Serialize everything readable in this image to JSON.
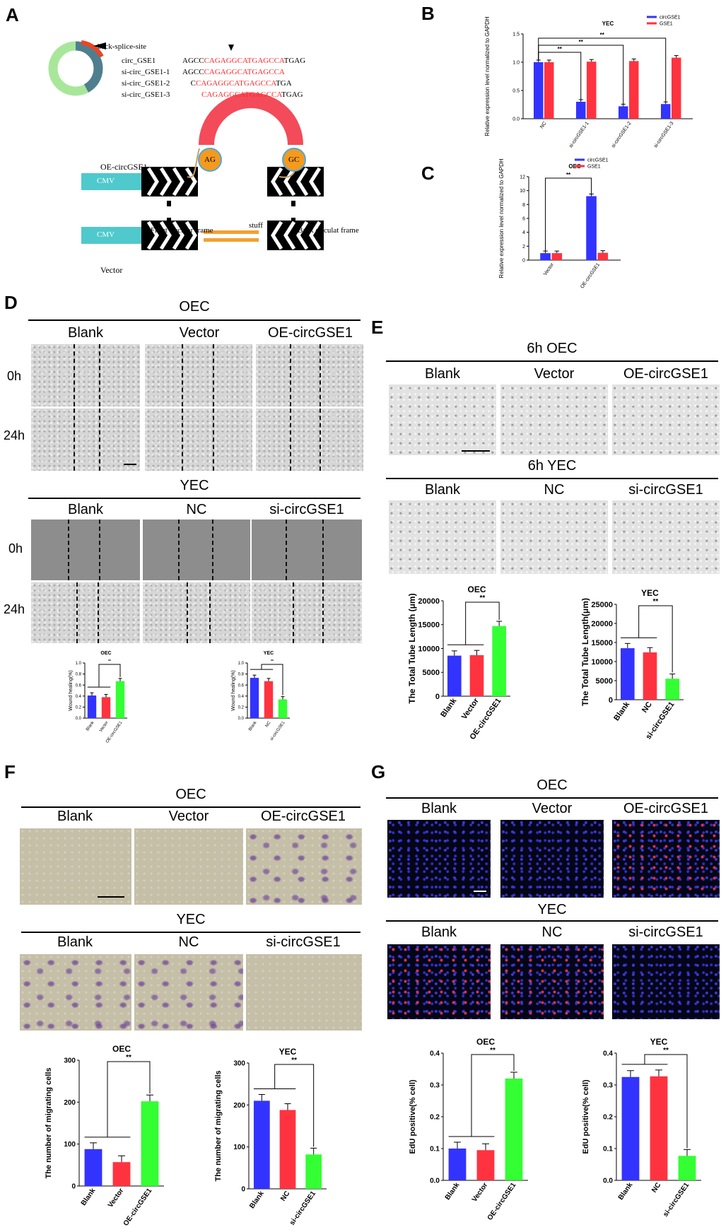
{
  "colors": {
    "blue": "#3333ff",
    "red": "#ff3340",
    "green": "#33ff33",
    "cmv": "#4fc9cc",
    "arc": "#f34b5a",
    "node": "#f39a1f",
    "stuff": "#f2a130",
    "seq_red": "#ff2a2a"
  },
  "panels": {
    "A": "A",
    "B": "B",
    "C": "C",
    "D": "D",
    "E": "E",
    "F": "F",
    "G": "G"
  },
  "panelA": {
    "back_splice": "back-splice-site",
    "seq_rows": [
      {
        "name": "circ_GSE1",
        "pre": "AGCC",
        "red": "CAGAGGCATGAGCCA",
        "post": "TGAG"
      },
      {
        "name": "si-circ_GSE1-1",
        "pre": "AGCC",
        "red": "CAGAGGCATGAGCCA",
        "post": ""
      },
      {
        "name": "si-circ_GSE1-2",
        "pre": "C",
        "red": "CAGAGGCATGAGCCA",
        "post": "TGA"
      },
      {
        "name": "si-circ_GSE1-3",
        "pre": "",
        "red": "CAGAGGCATGAGCCA",
        "post": "TGAG"
      }
    ],
    "oe_label": "OE-circGSE1",
    "vector_label": "Vector",
    "cmv": "CMV",
    "ag": "AG",
    "gc": "GC",
    "front": "Front circular frame",
    "back": "Back circulat frame",
    "stuff": "stuff"
  },
  "panelD": {
    "oec": "OEC",
    "yec": "YEC",
    "oec_cols": [
      "Blank",
      "Vector",
      "OE-circGSE1"
    ],
    "yec_cols": [
      "Blank",
      "NC",
      "si-circGSE1"
    ],
    "rows": [
      "0h",
      "24h"
    ]
  },
  "panelE": {
    "oec": "6h  OEC",
    "yec": "6h  YEC",
    "oec_cols": [
      "Blank",
      "Vector",
      "OE-circGSE1"
    ],
    "yec_cols": [
      "Blank",
      "NC",
      "si-circGSE1"
    ]
  },
  "panelF": {
    "oec": "OEC",
    "yec": "YEC",
    "oec_cols": [
      "Blank",
      "Vector",
      "OE-circGSE1"
    ],
    "yec_cols": [
      "Blank",
      "NC",
      "si-circGSE1"
    ]
  },
  "panelG": {
    "oec": "OEC",
    "yec": "YEC",
    "oec_cols": [
      "Blank",
      "Vector",
      "OE-circGSE1"
    ],
    "yec_cols": [
      "Blank",
      "NC",
      "si-circGSE1"
    ]
  },
  "chart_data": [
    {
      "id": "B",
      "type": "bar",
      "title": "YEC",
      "ylabel": "Relative expression level normalized to GAPDH",
      "categories": [
        "NC",
        "si-circGSE1-1",
        "si-circGSE1-2",
        "si-circGSE1-3"
      ],
      "series": [
        {
          "name": "circGSE1",
          "values": [
            1.0,
            0.3,
            0.22,
            0.26
          ]
        },
        {
          "name": "GSE1",
          "values": [
            1.0,
            1.01,
            1.02,
            1.08
          ]
        }
      ],
      "ylim": [
        0,
        1.5
      ],
      "yticks": [
        "0.0",
        "0.5",
        "1.0",
        "1.5"
      ],
      "sig": "**"
    },
    {
      "id": "C",
      "type": "bar",
      "title": "OEC",
      "ylabel": "Relative expression level normalized to GAPDH",
      "categories": [
        "Vector",
        "OE-circGSE1"
      ],
      "series": [
        {
          "name": "circGSE1",
          "values": [
            1.0,
            9.2
          ]
        },
        {
          "name": "GSE1",
          "values": [
            1.0,
            1.05
          ]
        }
      ],
      "ylim": [
        0,
        12
      ],
      "yticks": [
        "0",
        "2",
        "4",
        "6",
        "8",
        "10",
        "12"
      ],
      "sig": "**"
    },
    {
      "id": "D1",
      "type": "bar",
      "title": "OEC",
      "ylabel": "Wound healing(%)",
      "categories": [
        "Blank",
        "Vector",
        "OE-circGSE1"
      ],
      "values": [
        0.41,
        0.38,
        0.67
      ],
      "ylim": [
        0,
        1.0
      ],
      "yticks": [
        "0.0",
        "0.2",
        "0.4",
        "0.6",
        "0.8",
        "1.0"
      ],
      "sig": "**"
    },
    {
      "id": "D2",
      "type": "bar",
      "title": "YEC",
      "ylabel": "Wound healing(%)",
      "categories": [
        "Blank",
        "NC",
        "si-circGSE1"
      ],
      "values": [
        0.73,
        0.67,
        0.34
      ],
      "ylim": [
        0,
        1.0
      ],
      "yticks": [
        "0.0",
        "0.2",
        "0.4",
        "0.6",
        "0.8",
        "1.0"
      ],
      "sig": "**"
    },
    {
      "id": "E1",
      "type": "bar",
      "title": "OEC",
      "ylabel": "The Total Tube Length (μm)",
      "categories": [
        "Blank",
        "Vector",
        "OE-circGSE1"
      ],
      "values": [
        8500,
        8600,
        14700
      ],
      "ylim": [
        0,
        20000
      ],
      "yticks": [
        "0",
        "5000",
        "10000",
        "15000",
        "20000"
      ],
      "sig": "**"
    },
    {
      "id": "E2",
      "type": "bar",
      "title": "YEC",
      "ylabel": "The Total Tube Length(μm)",
      "categories": [
        "Blank",
        "NC",
        "si-circGSE1"
      ],
      "values": [
        13500,
        12400,
        5500
      ],
      "ylim": [
        0,
        25000
      ],
      "yticks": [
        "0",
        "5000",
        "10000",
        "15000",
        "20000",
        "25000"
      ],
      "sig": "**"
    },
    {
      "id": "F1",
      "type": "bar",
      "title": "OEC",
      "ylabel": "The number of migrating cells",
      "categories": [
        "Blank",
        "Vector",
        "OE-circGSE1"
      ],
      "values": [
        88,
        57,
        202
      ],
      "ylim": [
        0,
        300
      ],
      "yticks": [
        "0",
        "100",
        "200",
        "300"
      ],
      "sig": "**"
    },
    {
      "id": "F2",
      "type": "bar",
      "title": "YEC",
      "ylabel": "The number of migrating cells",
      "categories": [
        "Blank",
        "NC",
        "si-circGSE1"
      ],
      "values": [
        210,
        188,
        82
      ],
      "ylim": [
        0,
        300
      ],
      "yticks": [
        "0",
        "100",
        "200",
        "300"
      ],
      "sig": "**"
    },
    {
      "id": "G1",
      "type": "bar",
      "title": "OEC",
      "ylabel": "EdU positive(% cell)",
      "categories": [
        "Blank",
        "Vector",
        "OE-circGSE1"
      ],
      "values": [
        0.1,
        0.095,
        0.32
      ],
      "ylim": [
        0,
        0.4
      ],
      "yticks": [
        "0.0",
        "0.1",
        "0.2",
        "0.3",
        "0.4"
      ],
      "sig": "**"
    },
    {
      "id": "G2",
      "type": "bar",
      "title": "YEC",
      "ylabel": "EdU positive(% cell)",
      "categories": [
        "Blank",
        "NC",
        "si-circGSE1"
      ],
      "values": [
        0.325,
        0.327,
        0.077
      ],
      "ylim": [
        0,
        0.4
      ],
      "yticks": [
        "0.0",
        "0.1",
        "0.2",
        "0.3",
        "0.4"
      ],
      "sig": "**"
    }
  ]
}
